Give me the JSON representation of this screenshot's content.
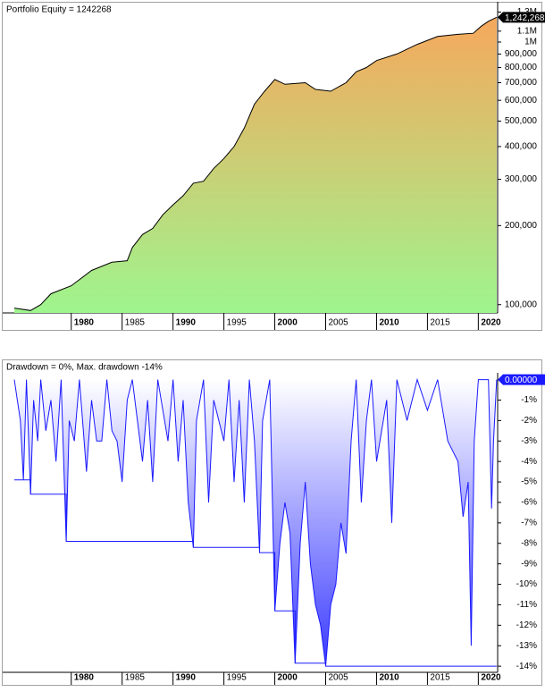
{
  "chart_data": [
    {
      "type": "area",
      "title": "Portfolio Equity = 1242268",
      "log_scale": true,
      "xlim": [
        1973.7,
        2021.9
      ],
      "xticks": [
        1980,
        1985,
        1990,
        1995,
        2000,
        2005,
        2010,
        2015,
        2020
      ],
      "ylim": [
        93000,
        1390000
      ],
      "yticks": [
        {
          "value": 100000,
          "label": "100,000"
        },
        {
          "value": 200000,
          "label": "200,000"
        },
        {
          "value": 300000,
          "label": "300,000"
        },
        {
          "value": 400000,
          "label": "400,000"
        },
        {
          "value": 500000,
          "label": "500,000"
        },
        {
          "value": 600000,
          "label": "600,000"
        },
        {
          "value": 700000,
          "label": "700,000"
        },
        {
          "value": 800000,
          "label": "800,000"
        },
        {
          "value": 900000,
          "label": "900,000"
        },
        {
          "value": 1000000,
          "label": "1M"
        },
        {
          "value": 1100000,
          "label": "1.1M"
        },
        {
          "value": 1300000,
          "label": "1.3M"
        }
      ],
      "gradient": [
        "#f6a85d",
        "#9ef58e"
      ],
      "series": [
        {
          "color": "#000000",
          "x": [
            1974.4,
            1976,
            1977,
            1978,
            1980,
            1982,
            1984,
            1985.5,
            1986,
            1987,
            1988,
            1989,
            1990,
            1991,
            1992,
            1993,
            1994,
            1995,
            1996,
            1997,
            1998,
            1999,
            2000,
            2001,
            2003,
            2004,
            2005.5,
            2007,
            2008,
            2009,
            2010,
            2012,
            2014,
            2016,
            2018,
            2019.5,
            2020.3,
            2021,
            2021.8
          ],
          "values": [
            97000,
            95000,
            100000,
            110000,
            118000,
            135000,
            145000,
            147000,
            165000,
            185000,
            195000,
            220000,
            240000,
            260000,
            290000,
            295000,
            330000,
            360000,
            400000,
            470000,
            580000,
            650000,
            720000,
            690000,
            700000,
            660000,
            650000,
            700000,
            770000,
            800000,
            850000,
            900000,
            980000,
            1050000,
            1070000,
            1080000,
            1150000,
            1200000,
            1242268
          ],
          "end_label": "1,242,268"
        }
      ]
    },
    {
      "type": "area",
      "title": "Drawdown = 0%, Max. drawdown -14%",
      "log_scale": false,
      "xlim": [
        1973.7,
        2021.9
      ],
      "xticks": [
        1980,
        1985,
        1990,
        1995,
        2000,
        2005,
        2010,
        2015,
        2020
      ],
      "ylim": [
        -14.3,
        0.2
      ],
      "yticks": [
        {
          "value": -1,
          "label": "-1%"
        },
        {
          "value": -2,
          "label": "-2%"
        },
        {
          "value": -3,
          "label": "-3%"
        },
        {
          "value": -4,
          "label": "-4%"
        },
        {
          "value": -5,
          "label": "-5%"
        },
        {
          "value": -6,
          "label": "-6%"
        },
        {
          "value": -7,
          "label": "-7%"
        },
        {
          "value": -8,
          "label": "-8%"
        },
        {
          "value": -9,
          "label": "-9%"
        },
        {
          "value": -10,
          "label": "-10%"
        },
        {
          "value": -11,
          "label": "-11%"
        },
        {
          "value": -12,
          "label": "-12%"
        },
        {
          "value": -13,
          "label": "-13%"
        },
        {
          "value": -14,
          "label": "-14%"
        }
      ],
      "gradient": [
        "#ffffff",
        "#3a3aff"
      ],
      "series": [
        {
          "color": "#1a1aff",
          "x": [
            1974.4,
            1975,
            1975.3,
            1975.6,
            1976,
            1976.3,
            1976.7,
            1977,
            1977.5,
            1978,
            1978.5,
            1979,
            1979.5,
            1979.8,
            1980.3,
            1980.8,
            1981.5,
            1982,
            1982.5,
            1983,
            1983.5,
            1984,
            1984.5,
            1985,
            1985.5,
            1986,
            1987,
            1987.5,
            1988,
            1988.5,
            1989.5,
            1990,
            1990.5,
            1991,
            1991.5,
            1992,
            1992.3,
            1993,
            1993.5,
            1994,
            1995,
            1995.5,
            1996,
            1996.5,
            1997,
            1997.5,
            1998,
            1998.5,
            1998.8,
            1999.5,
            2000,
            2000.5,
            2001,
            2001.5,
            2002,
            2002.5,
            2003,
            2003.5,
            2004,
            2004.5,
            2005,
            2005.5,
            2006,
            2006.5,
            2007,
            2007.5,
            2008,
            2008.5,
            2009,
            2009.5,
            2010,
            2011,
            2011.5,
            2012,
            2013,
            2014,
            2015,
            2016,
            2017,
            2018,
            2018.5,
            2019,
            2019.3,
            2019.6,
            2020,
            2021,
            2021.3,
            2021.5,
            2021.8
          ],
          "values": [
            0,
            -2,
            -4.9,
            0,
            -5.6,
            -1,
            -3,
            0,
            -2.5,
            -1,
            -4,
            0,
            -7.9,
            -2,
            -3,
            0,
            -4.5,
            -1,
            -3,
            -3,
            0,
            -2.5,
            -3,
            -5,
            -1,
            0,
            -4,
            -1,
            -5,
            0,
            -3,
            0,
            -4,
            -1,
            -6,
            -8.2,
            -2,
            0,
            -6,
            -1,
            -3,
            0,
            -5,
            -1,
            -6,
            0,
            -3,
            -8.45,
            -2,
            0,
            -11.3,
            -8,
            -6,
            -7.5,
            -13.85,
            -8,
            -5,
            -9,
            -11,
            -12,
            -14,
            -11,
            -10,
            -7,
            -8.5,
            -3,
            0,
            -6,
            -2,
            0,
            -4,
            -1,
            -7,
            0,
            -2,
            0,
            -1.5,
            0,
            -3,
            -4,
            -6.7,
            -5,
            -13,
            -3,
            0,
            0,
            -6.3,
            -3,
            0
          ],
          "end_label": "0.00000"
        },
        {
          "color": "#1a1aff",
          "step": true,
          "x": [
            1974.4,
            1976,
            1979.5,
            1992,
            1998.5,
            2000,
            2002,
            2005,
            2021.8
          ],
          "values": [
            -4.9,
            -5.6,
            -7.9,
            -8.2,
            -8.45,
            -11.3,
            -13.85,
            -14,
            -14
          ]
        }
      ]
    }
  ]
}
